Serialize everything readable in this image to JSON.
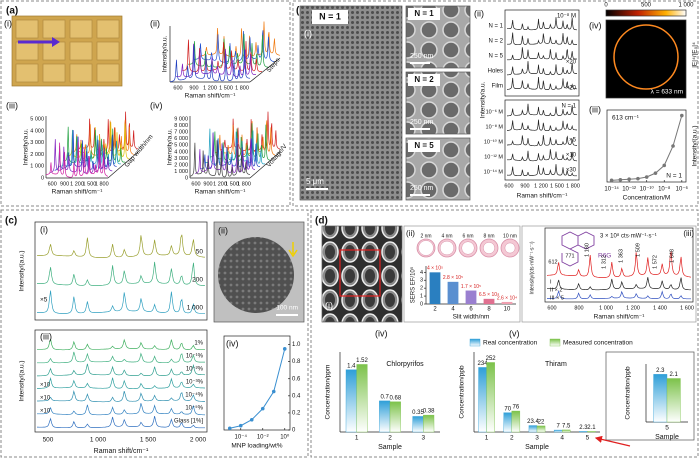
{
  "panels": {
    "a": {
      "label": "(a)",
      "i": "(i)",
      "ii": {
        "sub": "(ii)",
        "ylabel": "Intensity/a.u.",
        "xlabel": "Raman shift/cm⁻¹",
        "xticks": [
          "600",
          "900",
          "1 200",
          "1 500",
          "1 800"
        ],
        "zlabel": "Steps"
      },
      "iii": {
        "sub": "(iii)",
        "ylabel": "Intensity/a.u.",
        "xlabel": "Raman shift/cm⁻¹",
        "xticks": [
          "600",
          "900",
          "1 200",
          "1 500",
          "1 800"
        ],
        "yticks": [
          "0",
          "1 000",
          "2 000",
          "3 000",
          "4 000",
          "5 000"
        ],
        "zlabel": "Gap width/nm"
      },
      "iv": {
        "sub": "(iv)",
        "ylabel": "Intensity/a.u.",
        "xlabel": "Raman shift/cm⁻¹",
        "xticks": [
          "600",
          "900",
          "1 200",
          "1 500",
          "1 800"
        ],
        "yticks": [
          "0",
          "1 000",
          "2 000",
          "3 000",
          "4 000",
          "5 000",
          "6 000",
          "7 000",
          "8 000",
          "9 000"
        ],
        "zlabel": "Voltage/V"
      }
    },
    "b": {
      "label": "(b)",
      "i": {
        "sub": "(i)",
        "n": "N = 1",
        "scale": "5 μm"
      },
      "sem": [
        {
          "n": "N = 1",
          "scale": "250 nm"
        },
        {
          "n": "N = 2",
          "scale": "250 nm"
        },
        {
          "n": "N = 5",
          "scale": "250 nm"
        }
      ],
      "ii": {
        "sub": "(ii)",
        "conc": "10⁻⁸ M",
        "top": [
          "N = 1",
          "N = 2",
          "N = 5",
          "Holes",
          "Film"
        ],
        "top_mult": [
          "×20",
          "×20"
        ],
        "n": "N = 1",
        "bottom": [
          "10⁻⁶ M",
          "10⁻⁸ M",
          "10⁻¹⁰ M",
          "10⁻¹² M",
          "10⁻¹⁴ M"
        ],
        "bottom_mult": [
          "×5",
          "×10",
          "×30"
        ],
        "ylabel": "Intensity/a.u.",
        "xlabel": "Raman shift/cm⁻¹",
        "xticks": [
          "600",
          "900",
          "1 200",
          "1 500",
          "1 800"
        ]
      },
      "iv": {
        "sub": "(iv)",
        "cbticks": [
          "0",
          "500",
          "1 000"
        ],
        "cblabel": "|E|⁴/|E₀|⁴",
        "wavelength": "λ = 633 nm"
      }
    },
    "c": {
      "label": "(c)",
      "i": {
        "sub": "(i)",
        "traces": [
          "50",
          "200",
          "1 000"
        ],
        "mult": "×5",
        "ylabel": "Intensity/(a.u.)"
      },
      "ii": {
        "sub": "(ii)",
        "scale": "100 nm"
      },
      "iii": {
        "sub": "(iii)",
        "traces": [
          "1%",
          "10⁻¹%",
          "10⁻²%",
          "10⁻³%",
          "10⁻⁴%",
          "10⁻⁵%",
          "Glass [1%]"
        ],
        "mult": [
          "×10",
          "×10",
          "×10"
        ],
        "ylabel": "Intensity/(a.u.)",
        "xlabel": "Raman shift/cm⁻¹",
        "xticks": [
          "500",
          "1 000",
          "1 500",
          "2 000"
        ]
      }
    },
    "d": {
      "label": "(d)",
      "i": "(i)",
      "slits": [
        "2 nm",
        "4 nm",
        "6 nm",
        "8 nm",
        "10 nm"
      ],
      "iii": {
        "sub": "(iii)",
        "scale": "3 × 10⁸ cts·mW⁻¹·s⁻¹",
        "molecule": "R6G",
        "peaks": [
          "612",
          "771",
          "1 180",
          "1 312",
          "1 363",
          "1 509",
          "1 572",
          "1 648"
        ],
        "traces": [
          "I",
          "II × 2",
          "III × 5"
        ],
        "ylabel": "Intensity/(cts·mW⁻¹·s⁻¹)",
        "xlabel": "Raman shift/cm⁻¹",
        "xticks": [
          "600",
          "800",
          "1 000",
          "1 200",
          "1 400",
          "1 600"
        ]
      }
    }
  },
  "chart_data": [
    {
      "type": "line",
      "label": "(iii)",
      "annotation": "613 cm⁻¹",
      "note": "N = 1",
      "ylabel": "Intensity/(a.u.)",
      "xlabel": "Concentration/M",
      "log_x": true,
      "x": [
        1e-14,
        1e-13,
        1e-12,
        1e-11,
        1e-10,
        1e-09,
        1e-08,
        1e-07,
        1e-06
      ],
      "values": [
        0.3,
        0.4,
        0.5,
        0.6,
        0.9,
        1.6,
        3,
        6.5,
        12
      ],
      "xlim": [
        3e-15,
        3e-06
      ],
      "ylim": [
        0,
        13
      ],
      "color": "#777777",
      "xticks": [
        {
          "value": 1e-14,
          "label": "10⁻¹⁴"
        },
        {
          "value": 1e-12,
          "label": "10⁻¹²"
        },
        {
          "value": 1e-10,
          "label": "10⁻¹⁰"
        },
        {
          "value": 1e-08,
          "label": "10⁻⁸"
        },
        {
          "value": 1e-06,
          "label": "10⁻⁶"
        }
      ]
    },
    {
      "type": "line",
      "label": "(iv)",
      "xlabel": "MNP loading/wt%",
      "log_x": true,
      "x": [
        1e-05,
        0.0001,
        0.001,
        0.01,
        0.1,
        1
      ],
      "values": [
        0.02,
        0.05,
        0.12,
        0.25,
        0.45,
        0.95
      ],
      "xlim": [
        3e-06,
        3
      ],
      "ylim": [
        0,
        1.1
      ],
      "color": "#3a8fd0",
      "xticks": [
        {
          "value": 0.0001,
          "label": "10⁻⁴"
        },
        {
          "value": 0.01,
          "label": "10⁻²"
        },
        {
          "value": 1,
          "label": "10⁰"
        }
      ],
      "yticks": [
        0,
        0.2,
        0.4,
        0.6,
        0.8,
        {
          "value": 1,
          "label": "1.0"
        }
      ]
    },
    {
      "type": "bar",
      "label": "(ii)",
      "categories": [
        "2",
        "4",
        "6",
        "8",
        "10"
      ],
      "values": [
        4,
        2.8,
        1.7,
        0.65,
        0.26
      ],
      "value_labels": [
        "4 × 10⁵",
        "2.8 × 10⁵",
        "1.7 × 10⁵",
        "6.5 × 10⁴",
        "2.6 × 10⁴"
      ],
      "colors": [
        "#2a7fc0",
        "#5a8fd0",
        "#9a7fd0",
        "#e07090",
        "#f0a0b0"
      ],
      "label_color": "#d62020",
      "ylim": [
        0,
        4.8
      ],
      "yticks": [
        0,
        1,
        2,
        3,
        4
      ],
      "xlabel": "Slit width/nm",
      "ylabel": "SERS EF/10⁵"
    },
    {
      "type": "grouped_bar",
      "label": "(iv)",
      "title": "Chlorpyrifos",
      "categories": [
        "1",
        "2",
        "3"
      ],
      "series": [
        {
          "name": "Real concentration",
          "color": "#2f9fd8",
          "values": [
            1.4,
            0.7,
            0.35
          ]
        },
        {
          "name": "Measured concentration",
          "color": "#7cc24a",
          "values": [
            1.52,
            0.68,
            0.38
          ]
        }
      ],
      "ylim": [
        0,
        1.8
      ],
      "xlabel": "Sample",
      "ylabel": "Concentration/ppm"
    },
    {
      "type": "grouped_bar",
      "label": "(v)",
      "title": "Thiram",
      "categories": [
        "1",
        "2",
        "3",
        "4",
        "5"
      ],
      "series": [
        {
          "color": "#2f9fd8",
          "values": [
            234,
            70,
            23.4,
            7,
            2.3
          ]
        },
        {
          "color": "#7cc24a",
          "values": [
            252,
            76,
            22,
            7.5,
            2.1
          ]
        }
      ],
      "ylim": [
        0,
        290
      ],
      "xlabel": "Sample",
      "ylabel": "Concentration/ppb"
    },
    {
      "type": "grouped_bar",
      "categories": [
        "5"
      ],
      "series": [
        {
          "color": "#2f9fd8",
          "values": [
            2.3
          ]
        },
        {
          "color": "#7cc24a",
          "values": [
            2.1
          ]
        }
      ],
      "ylim": [
        0,
        2.8
      ],
      "xlabel": "Sample",
      "ylabel": "Concentration/ppb"
    }
  ]
}
